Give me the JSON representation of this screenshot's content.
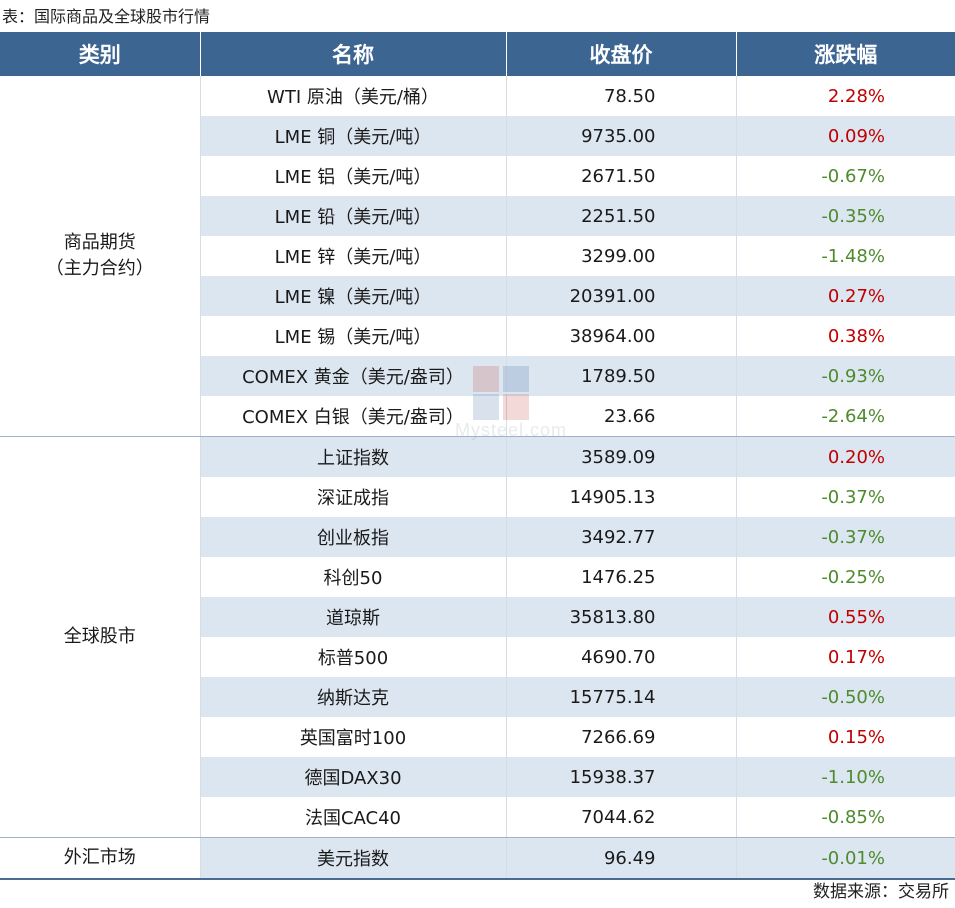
{
  "caption": "表：国际商品及全球股市行情",
  "headers": {
    "category": "类别",
    "name": "名称",
    "close": "收盘价",
    "change": "涨跌幅"
  },
  "categories": {
    "commodities_line1": "商品期货",
    "commodities_line2": "（主力合约）",
    "stocks": "全球股市",
    "forex": "外汇市场"
  },
  "rows": [
    {
      "name": "WTI 原油（美元/桶）",
      "close": "78.50",
      "change": "2.28%"
    },
    {
      "name": "LME 铜（美元/吨）",
      "close": "9735.00",
      "change": "0.09%"
    },
    {
      "name": "LME 铝（美元/吨）",
      "close": "2671.50",
      "change": "-0.67%"
    },
    {
      "name": "LME 铅（美元/吨）",
      "close": "2251.50",
      "change": "-0.35%"
    },
    {
      "name": "LME 锌（美元/吨）",
      "close": "3299.00",
      "change": "-1.48%"
    },
    {
      "name": "LME 镍（美元/吨）",
      "close": "20391.00",
      "change": "0.27%"
    },
    {
      "name": "LME 锡（美元/吨）",
      "close": "38964.00",
      "change": "0.38%"
    },
    {
      "name": "COMEX 黄金（美元/盎司）",
      "close": "1789.50",
      "change": "-0.93%"
    },
    {
      "name": "COMEX 白银（美元/盎司）",
      "close": "23.66",
      "change": "-2.64%"
    },
    {
      "name": "上证指数",
      "close": "3589.09",
      "change": "0.20%"
    },
    {
      "name": "深证成指",
      "close": "14905.13",
      "change": "-0.37%"
    },
    {
      "name": "创业板指",
      "close": "3492.77",
      "change": "-0.37%"
    },
    {
      "name": "科创50",
      "close": "1476.25",
      "change": "-0.25%"
    },
    {
      "name": "道琼斯",
      "close": "35813.80",
      "change": "0.55%"
    },
    {
      "name": "标普500",
      "close": "4690.70",
      "change": "0.17%"
    },
    {
      "name": "纳斯达克",
      "close": "15775.14",
      "change": "-0.50%"
    },
    {
      "name": "英国富时100",
      "close": "7266.69",
      "change": "0.15%"
    },
    {
      "name": "德国DAX30",
      "close": "15938.37",
      "change": "-1.10%"
    },
    {
      "name": "法国CAC40",
      "close": "7044.62",
      "change": "-0.85%"
    },
    {
      "name": "美元指数",
      "close": "96.49",
      "change": "-0.01%"
    }
  ],
  "watermark": "Mysteel.com",
  "source": "数据来源：交易所",
  "colors": {
    "header_bg": "#3c6592",
    "shade_bg": "#dce6f1",
    "up": "#c00000",
    "down": "#4e8a2e"
  }
}
